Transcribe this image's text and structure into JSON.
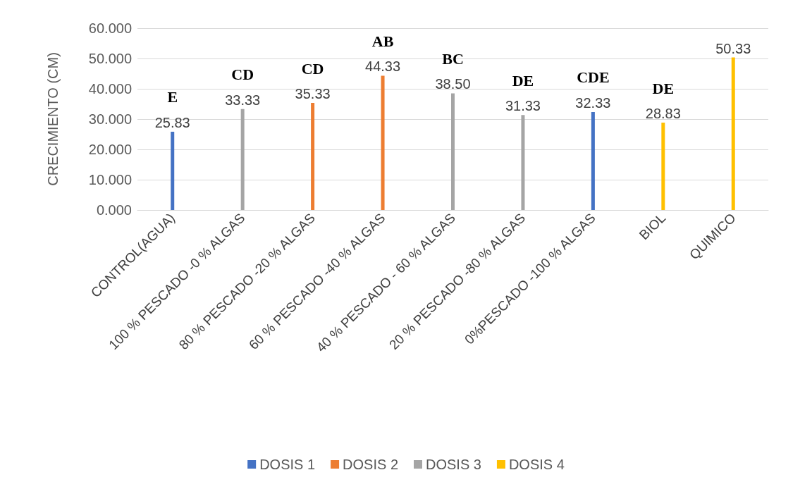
{
  "chart_data": {
    "type": "bar",
    "ylabel": "CRECIMIENTO (CM)",
    "categories": [
      "CONTROL(AGUA)",
      "100 % PESCADO -0 % ALGAS",
      "80 % PESCADO -20 % ALGAS",
      "60 % PESCADO -40 % ALGAS",
      "40 % PESCADO - 60 % ALGAS",
      "20 % PESCADO -80 % ALGAS",
      "0%PESCADO -100 % ALGAS",
      "BIOL",
      "QUIMICO"
    ],
    "series": [
      {
        "name": "DOSIS 1",
        "color": "#4472c4",
        "values": [
          25.83,
          null,
          null,
          null,
          null,
          null,
          32.33,
          null,
          null
        ],
        "value_labels": [
          "25.83",
          null,
          null,
          null,
          null,
          null,
          "32.33",
          null,
          null
        ]
      },
      {
        "name": "DOSIS 2",
        "color": "#ed7d31",
        "values": [
          null,
          null,
          35.33,
          44.33,
          null,
          null,
          null,
          null,
          null
        ],
        "value_labels": [
          null,
          null,
          "35.33",
          "44.33",
          null,
          null,
          null,
          null,
          null
        ]
      },
      {
        "name": "DOSIS 3",
        "color": "#a5a5a5",
        "values": [
          null,
          33.33,
          null,
          null,
          38.5,
          31.33,
          null,
          null,
          null
        ],
        "value_labels": [
          null,
          "33.33",
          null,
          null,
          "38.50",
          "31.33",
          null,
          null,
          null
        ]
      },
      {
        "name": "DOSIS 4",
        "color": "#ffc000",
        "values": [
          null,
          null,
          null,
          null,
          null,
          null,
          null,
          28.83,
          50.33
        ],
        "value_labels": [
          null,
          null,
          null,
          null,
          null,
          null,
          null,
          "28.83",
          "50.33"
        ]
      }
    ],
    "stacked": true,
    "ylim": [
      0,
      60
    ],
    "yticks": [
      {
        "value": 0,
        "label": "0.000"
      },
      {
        "value": 10,
        "label": "10.000"
      },
      {
        "value": 20,
        "label": "20.000"
      },
      {
        "value": 30,
        "label": "30.000"
      },
      {
        "value": 40,
        "label": "40.000"
      },
      {
        "value": 50,
        "label": "50.000"
      },
      {
        "value": 60,
        "label": "60.000"
      }
    ],
    "grid": "y",
    "legend": "bottom",
    "annotations": [
      {
        "text": "E",
        "x": "CONTROL(AGUA)",
        "y": 25.83
      },
      {
        "text": "CD",
        "x": "100 % PESCADO -0 % ALGAS",
        "y": 33.33
      },
      {
        "text": "CD",
        "x": "80 % PESCADO -20 % ALGAS",
        "y": 35.33
      },
      {
        "text": "AB",
        "x": "60 % PESCADO -40 % ALGAS",
        "y": 44.33
      },
      {
        "text": "BC",
        "x": "40 % PESCADO - 60 % ALGAS",
        "y": 38.5
      },
      {
        "text": "DE",
        "x": "20 % PESCADO -80 % ALGAS",
        "y": 31.33
      },
      {
        "text": "CDE",
        "x": "0%PESCADO -100 % ALGAS",
        "y": 32.33
      },
      {
        "text": "DE",
        "x": "BIOL",
        "y": 28.83
      }
    ]
  }
}
